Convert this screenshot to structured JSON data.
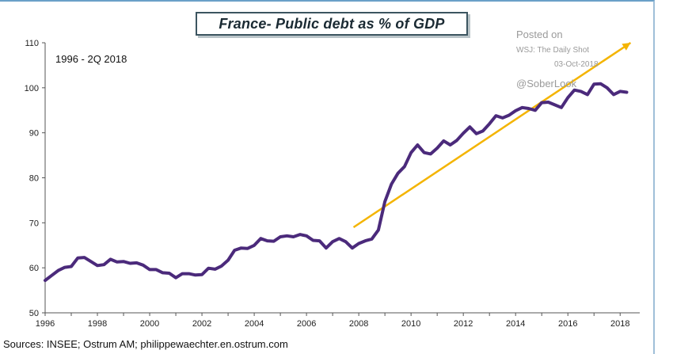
{
  "chart_data": {
    "type": "line",
    "title": "France- Public debt as % of GDP",
    "period_label": "1996 - 2Q 2018",
    "source": "Sources: INSEE;  Ostrum AM; philippewaechter.en.ostrum.com",
    "ylim": [
      50,
      110
    ],
    "y_ticks": [
      50,
      60,
      70,
      80,
      90,
      100,
      110
    ],
    "xlim": [
      1996,
      2018.75
    ],
    "x_ticks": [
      1996,
      1998,
      2000,
      2002,
      2004,
      2006,
      2008,
      2010,
      2012,
      2014,
      2016,
      2018
    ],
    "grid": false,
    "series": [
      {
        "color": "#4b2a7b",
        "x": [
          1996.0,
          1996.25,
          1996.5,
          1996.75,
          1997.0,
          1997.25,
          1997.5,
          1997.75,
          1998.0,
          1998.25,
          1998.5,
          1998.75,
          1999.0,
          1999.25,
          1999.5,
          1999.75,
          2000.0,
          2000.25,
          2000.5,
          2000.75,
          2001.0,
          2001.25,
          2001.5,
          2001.75,
          2002.0,
          2002.25,
          2002.5,
          2002.75,
          2003.0,
          2003.25,
          2003.5,
          2003.75,
          2004.0,
          2004.25,
          2004.5,
          2004.75,
          2005.0,
          2005.25,
          2005.5,
          2005.75,
          2006.0,
          2006.25,
          2006.5,
          2006.75,
          2007.0,
          2007.25,
          2007.5,
          2007.75,
          2008.0,
          2008.25,
          2008.5,
          2008.75,
          2009.0,
          2009.25,
          2009.5,
          2009.75,
          2010.0,
          2010.25,
          2010.5,
          2010.75,
          2011.0,
          2011.25,
          2011.5,
          2011.75,
          2012.0,
          2012.25,
          2012.5,
          2012.75,
          2013.0,
          2013.25,
          2013.5,
          2013.75,
          2014.0,
          2014.25,
          2014.5,
          2014.75,
          2015.0,
          2015.25,
          2015.5,
          2015.75,
          2016.0,
          2016.25,
          2016.5,
          2016.75,
          2017.0,
          2017.25,
          2017.5,
          2017.75,
          2018.0,
          2018.25
        ],
        "y": [
          57.2,
          58.3,
          59.4,
          60.1,
          60.3,
          62.2,
          62.3,
          61.4,
          60.5,
          60.7,
          61.9,
          61.3,
          61.4,
          61.0,
          61.1,
          60.6,
          59.6,
          59.6,
          58.9,
          58.8,
          57.8,
          58.7,
          58.7,
          58.4,
          58.5,
          59.9,
          59.7,
          60.4,
          61.7,
          63.9,
          64.4,
          64.3,
          65.0,
          66.5,
          66.0,
          65.9,
          66.9,
          67.1,
          66.9,
          67.4,
          67.1,
          66.1,
          66.0,
          64.4,
          65.8,
          66.5,
          65.8,
          64.4,
          65.4,
          66.0,
          66.4,
          68.4,
          74.7,
          78.6,
          81.0,
          82.5,
          85.6,
          87.3,
          85.6,
          85.3,
          86.6,
          88.2,
          87.3,
          88.3,
          89.9,
          91.3,
          89.8,
          90.4,
          92.0,
          93.8,
          93.3,
          93.9,
          94.9,
          95.6,
          95.4,
          95.0,
          96.7,
          96.8,
          96.2,
          95.6,
          97.8,
          99.5,
          99.2,
          98.5,
          100.8,
          100.9,
          100.0,
          98.5,
          99.2,
          99.0
        ]
      }
    ],
    "trend_line": {
      "color": "#f4b400",
      "x": [
        2007.8,
        2018.4
      ],
      "y": [
        69.0,
        110.0
      ]
    },
    "watermark": {
      "line1": "Posted on",
      "line2": "WSJ: The Daily Shot",
      "line3": "03-Oct-2018",
      "line4": "@SoberLook"
    }
  }
}
